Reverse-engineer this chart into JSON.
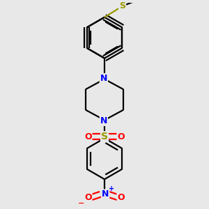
{
  "background_color": "#e8e8e8",
  "bond_color": "#000000",
  "N_color": "#0000ff",
  "S_color": "#999900",
  "O_color": "#ff0000",
  "line_width": 1.6,
  "dbo": 0.008,
  "figsize": [
    3.0,
    3.0
  ],
  "dpi": 100,
  "xlim": [
    -1.8,
    1.8
  ],
  "ylim": [
    -2.6,
    2.6
  ]
}
